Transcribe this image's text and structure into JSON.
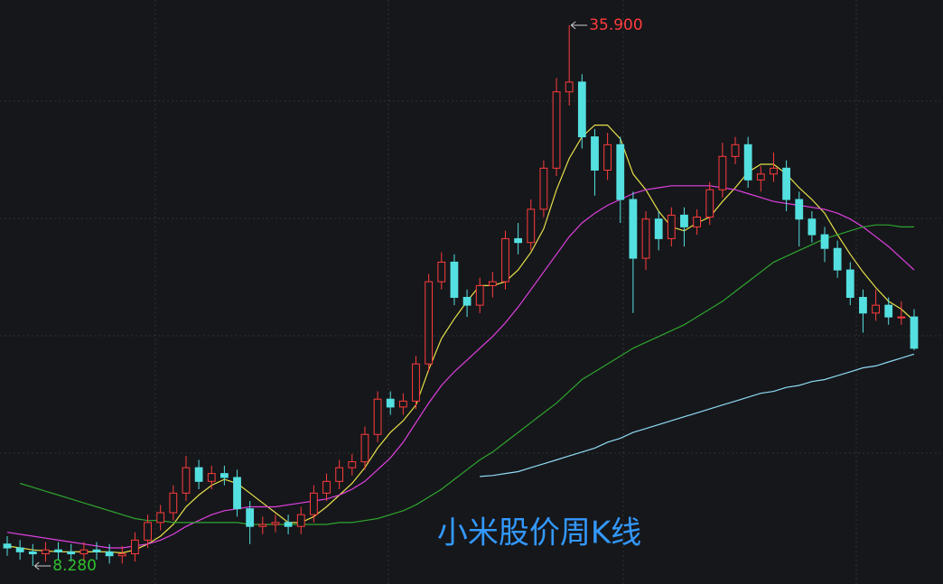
{
  "chart_data": {
    "type": "candlestick",
    "title": "小米股价周K线",
    "up_color": "#ff3c3c",
    "down_color": "#54e0e0",
    "open": [
      9.4,
      9.2,
      9.0,
      8.9,
      9.1,
      9.0,
      8.9,
      9.1,
      9.0,
      8.8,
      8.9,
      9.6,
      10.5,
      11.0,
      12.0,
      13.3,
      12.6,
      13.0,
      12.8,
      11.2,
      10.3,
      10.4,
      10.5,
      10.3,
      10.9,
      12.0,
      12.6,
      13.3,
      13.6,
      15.0,
      16.8,
      16.4,
      16.7,
      18.6,
      22.8,
      23.8,
      22.0,
      21.6,
      22.6,
      22.8,
      25.0,
      24.8,
      26.5,
      28.6,
      32.5,
      33.0,
      30.2,
      28.5,
      29.8,
      27.0,
      24.0,
      26.0,
      25.0,
      26.2,
      25.6,
      26.1,
      27.5,
      29.2,
      29.8,
      28.0,
      28.3,
      28.6,
      27.0,
      26.0,
      25.2,
      24.5,
      23.4,
      22.0,
      21.2,
      21.6,
      21.0,
      21.0
    ],
    "high": [
      9.8,
      9.6,
      9.4,
      9.5,
      9.5,
      9.4,
      9.5,
      9.5,
      9.4,
      9.3,
      10.0,
      10.9,
      11.4,
      12.4,
      13.9,
      13.7,
      13.4,
      13.4,
      13.2,
      11.6,
      10.8,
      10.9,
      10.9,
      11.3,
      12.4,
      13.0,
      13.7,
      14.0,
      15.4,
      17.2,
      17.2,
      17.1,
      19.0,
      23.2,
      24.3,
      24.2,
      22.4,
      23.0,
      23.3,
      25.4,
      25.8,
      27.0,
      29.0,
      33.2,
      35.9,
      33.4,
      30.6,
      30.4,
      30.2,
      27.4,
      26.4,
      26.4,
      26.6,
      26.6,
      26.5,
      27.9,
      29.9,
      30.2,
      30.2,
      28.7,
      29.4,
      29.0,
      27.4,
      26.4,
      25.6,
      24.9,
      23.8,
      22.4,
      22.4,
      22.0,
      21.8,
      21.4
    ],
    "low": [
      8.8,
      8.6,
      8.28,
      8.5,
      8.6,
      8.5,
      8.5,
      8.6,
      8.4,
      8.4,
      8.5,
      9.2,
      10.1,
      10.6,
      11.6,
      12.2,
      12.2,
      12.4,
      10.8,
      9.4,
      9.9,
      10.0,
      9.9,
      9.9,
      10.5,
      11.6,
      12.2,
      12.9,
      13.2,
      14.6,
      16.0,
      16.0,
      16.3,
      18.2,
      22.4,
      21.6,
      21.0,
      21.2,
      22.0,
      22.4,
      24.2,
      24.4,
      26.1,
      28.2,
      31.8,
      29.6,
      27.2,
      28.0,
      25.8,
      21.2,
      23.4,
      24.4,
      24.6,
      24.6,
      25.2,
      25.7,
      27.1,
      28.8,
      27.6,
      27.4,
      27.9,
      26.4,
      24.6,
      24.8,
      23.8,
      23.0,
      21.6,
      20.2,
      20.8,
      20.6,
      20.6,
      19.3
    ],
    "close": [
      9.2,
      9.0,
      8.9,
      9.1,
      9.0,
      8.9,
      9.1,
      9.0,
      8.8,
      8.9,
      9.6,
      10.5,
      11.0,
      12.0,
      13.3,
      12.6,
      13.0,
      12.8,
      11.2,
      10.3,
      10.4,
      10.5,
      10.3,
      10.9,
      12.0,
      12.6,
      13.3,
      13.6,
      15.0,
      16.8,
      16.4,
      16.7,
      18.6,
      22.8,
      23.8,
      22.0,
      21.6,
      22.6,
      22.8,
      25.0,
      24.8,
      26.5,
      28.6,
      32.5,
      33.0,
      30.2,
      28.5,
      29.8,
      27.0,
      24.0,
      26.0,
      25.0,
      26.2,
      25.6,
      26.1,
      27.5,
      29.2,
      29.8,
      28.0,
      28.3,
      28.6,
      27.0,
      26.0,
      25.2,
      24.5,
      23.4,
      22.0,
      21.2,
      21.6,
      21.0,
      21.0,
      19.4
    ],
    "series": [
      {
        "color": "#e6e04a",
        "values": [
          9.3,
          9.2,
          9.1,
          9.05,
          9.0,
          9.0,
          9.0,
          9.0,
          9.0,
          8.95,
          9.1,
          9.4,
          9.8,
          10.4,
          11.3,
          11.9,
          12.4,
          12.7,
          12.5,
          12.0,
          11.5,
          11.0,
          10.5,
          10.5,
          10.8,
          11.3,
          11.9,
          12.5,
          13.3,
          14.3,
          15.1,
          15.7,
          16.5,
          18.3,
          19.9,
          20.9,
          21.8,
          22.6,
          22.6,
          22.8,
          23.4,
          24.3,
          25.5,
          27.5,
          29.1,
          30.2,
          30.8,
          30.8,
          30.1,
          28.3,
          27.5,
          26.4,
          25.6,
          25.4,
          25.8,
          26.1,
          26.9,
          27.6,
          28.4,
          28.8,
          28.8,
          28.3,
          27.6,
          27.0,
          26.3,
          25.2,
          24.2,
          23.3,
          22.5,
          21.8,
          21.4,
          20.8
        ]
      },
      {
        "color": "#e040e0",
        "values": [
          10.0,
          9.9,
          9.8,
          9.7,
          9.6,
          9.5,
          9.4,
          9.3,
          9.2,
          9.2,
          9.3,
          9.4,
          9.6,
          9.9,
          10.3,
          10.6,
          10.9,
          11.1,
          11.2,
          11.3,
          11.3,
          11.3,
          11.4,
          11.5,
          11.6,
          11.7,
          11.9,
          12.2,
          12.6,
          13.2,
          13.8,
          14.6,
          15.6,
          16.6,
          17.5,
          18.2,
          18.8,
          19.4,
          20.0,
          20.7,
          21.5,
          22.4,
          23.3,
          24.2,
          25.1,
          25.8,
          26.3,
          26.7,
          27.0,
          27.3,
          27.5,
          27.6,
          27.7,
          27.7,
          27.7,
          27.7,
          27.6,
          27.5,
          27.3,
          27.1,
          26.9,
          26.8,
          26.7,
          26.6,
          26.5,
          26.3,
          26.0,
          25.6,
          25.1,
          24.6,
          24.0,
          23.4
        ]
      },
      {
        "color": "#2ea52e",
        "values": [
          null,
          12.5,
          12.3,
          12.1,
          11.9,
          11.7,
          11.5,
          11.3,
          11.1,
          10.9,
          10.7,
          10.6,
          10.6,
          10.5,
          10.5,
          10.5,
          10.5,
          10.5,
          10.5,
          10.4,
          10.4,
          10.4,
          10.4,
          10.4,
          10.4,
          10.4,
          10.5,
          10.5,
          10.6,
          10.7,
          10.9,
          11.1,
          11.4,
          11.8,
          12.2,
          12.7,
          13.2,
          13.7,
          14.1,
          14.6,
          15.1,
          15.6,
          16.1,
          16.6,
          17.2,
          17.8,
          18.2,
          18.6,
          19.0,
          19.4,
          19.7,
          20.0,
          20.3,
          20.6,
          21.0,
          21.4,
          21.8,
          22.3,
          22.8,
          23.3,
          23.8,
          24.1,
          24.4,
          24.7,
          25.0,
          25.2,
          25.4,
          25.6,
          25.7,
          25.7,
          25.6,
          25.6
        ]
      },
      {
        "color": "#8fdcf5",
        "values": [
          null,
          null,
          null,
          null,
          null,
          null,
          null,
          null,
          null,
          null,
          null,
          null,
          null,
          null,
          null,
          null,
          null,
          null,
          null,
          null,
          null,
          null,
          null,
          null,
          null,
          null,
          null,
          null,
          null,
          null,
          null,
          null,
          null,
          null,
          null,
          null,
          null,
          12.85,
          12.9,
          13.0,
          13.1,
          13.3,
          13.5,
          13.7,
          13.9,
          14.1,
          14.3,
          14.6,
          14.8,
          15.1,
          15.3,
          15.5,
          15.7,
          15.9,
          16.1,
          16.3,
          16.5,
          16.7,
          16.9,
          17.1,
          17.2,
          17.4,
          17.5,
          17.7,
          17.8,
          18.0,
          18.2,
          18.4,
          18.5,
          18.7,
          18.9,
          19.1
        ]
      }
    ],
    "annotations": [
      {
        "label": "35.900",
        "value": 35.9,
        "color": "#ff3c3c"
      },
      {
        "label": "8.280",
        "value": 8.28,
        "color": "#2ec02e"
      }
    ]
  }
}
